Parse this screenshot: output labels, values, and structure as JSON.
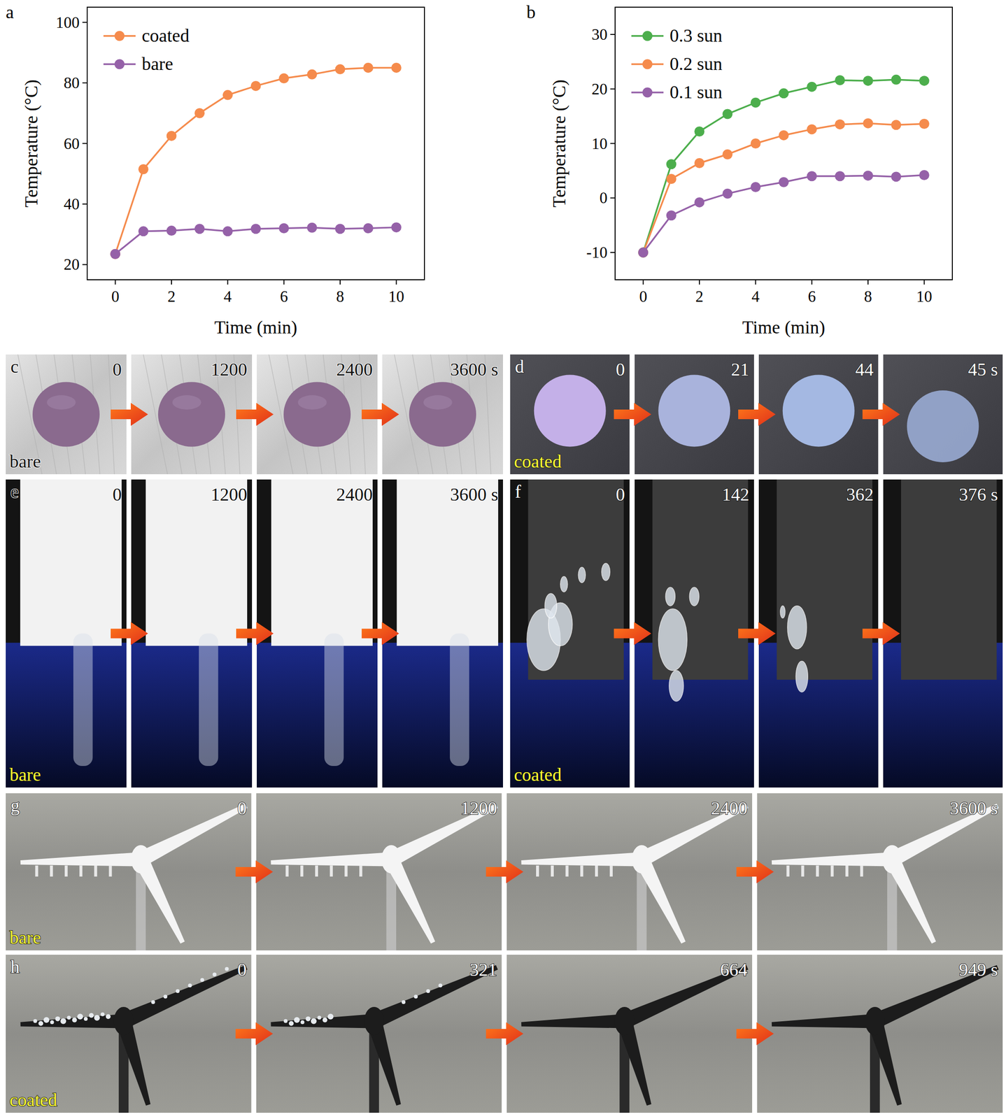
{
  "chart_data": [
    {
      "type": "line",
      "panel": "a",
      "x_label": "Time (min)",
      "y_label": "Temperature (°C)",
      "x": [
        0,
        1,
        2,
        3,
        4,
        5,
        6,
        7,
        8,
        9,
        10
      ],
      "xlim": [
        -1,
        11
      ],
      "xticks": [
        0,
        2,
        4,
        6,
        8,
        10
      ],
      "ylim": [
        15,
        105
      ],
      "yticks": [
        20,
        40,
        60,
        80,
        100
      ],
      "grid": false,
      "legend": "upper left",
      "marker": "circle",
      "series": [
        {
          "name": "coated",
          "color": "#f58b4c",
          "values": [
            23.5,
            51.5,
            62.5,
            70,
            76,
            79,
            81.5,
            82.8,
            84.5,
            85,
            85
          ]
        },
        {
          "name": "bare",
          "color": "#9561a8",
          "values": [
            23.5,
            31,
            31.2,
            31.8,
            31,
            31.8,
            32,
            32.2,
            31.8,
            32,
            32.3
          ]
        }
      ]
    },
    {
      "type": "line",
      "panel": "b",
      "x_label": "Time (min)",
      "y_label": "Temperature (°C)",
      "x": [
        0,
        1,
        2,
        3,
        4,
        5,
        6,
        7,
        8,
        9,
        10
      ],
      "xlim": [
        -1,
        11
      ],
      "xticks": [
        0,
        2,
        4,
        6,
        8,
        10
      ],
      "ylim": [
        -15,
        35
      ],
      "yticks": [
        -10,
        0,
        10,
        20,
        30
      ],
      "grid": false,
      "legend": "upper left",
      "marker": "circle",
      "series": [
        {
          "name": "0.3 sun",
          "color": "#4cae4c",
          "values": [
            -10,
            6.2,
            12.2,
            15.4,
            17.5,
            19.2,
            20.4,
            21.6,
            21.5,
            21.7,
            21.5
          ]
        },
        {
          "name": "0.2 sun",
          "color": "#f58b4c",
          "values": [
            -10,
            3.5,
            6.4,
            8,
            10,
            11.5,
            12.6,
            13.5,
            13.7,
            13.4,
            13.6
          ]
        },
        {
          "name": "0.1 sun",
          "color": "#9561a8",
          "values": [
            -10,
            -3.2,
            -0.8,
            0.8,
            2,
            2.9,
            4,
            4,
            4.1,
            3.9,
            4.2
          ]
        }
      ]
    }
  ],
  "photo_panels": [
    {
      "panel": "c",
      "sample": "bare",
      "times": [
        "0",
        "1200",
        "2400",
        "3600 s"
      ]
    },
    {
      "panel": "d",
      "sample": "coated",
      "times": [
        "0",
        "21",
        "44",
        "45 s"
      ]
    },
    {
      "panel": "e",
      "sample": "bare",
      "times": [
        "0",
        "1200",
        "2400",
        "3600 s"
      ]
    },
    {
      "panel": "f",
      "sample": "coated",
      "times": [
        "0",
        "142",
        "362",
        "376 s"
      ]
    },
    {
      "panel": "g",
      "sample": "bare",
      "times": [
        "0",
        "1200",
        "2400",
        "3600 s"
      ]
    },
    {
      "panel": "h",
      "sample": "coated",
      "times": [
        "0",
        "321",
        "664",
        "949 s"
      ]
    }
  ]
}
